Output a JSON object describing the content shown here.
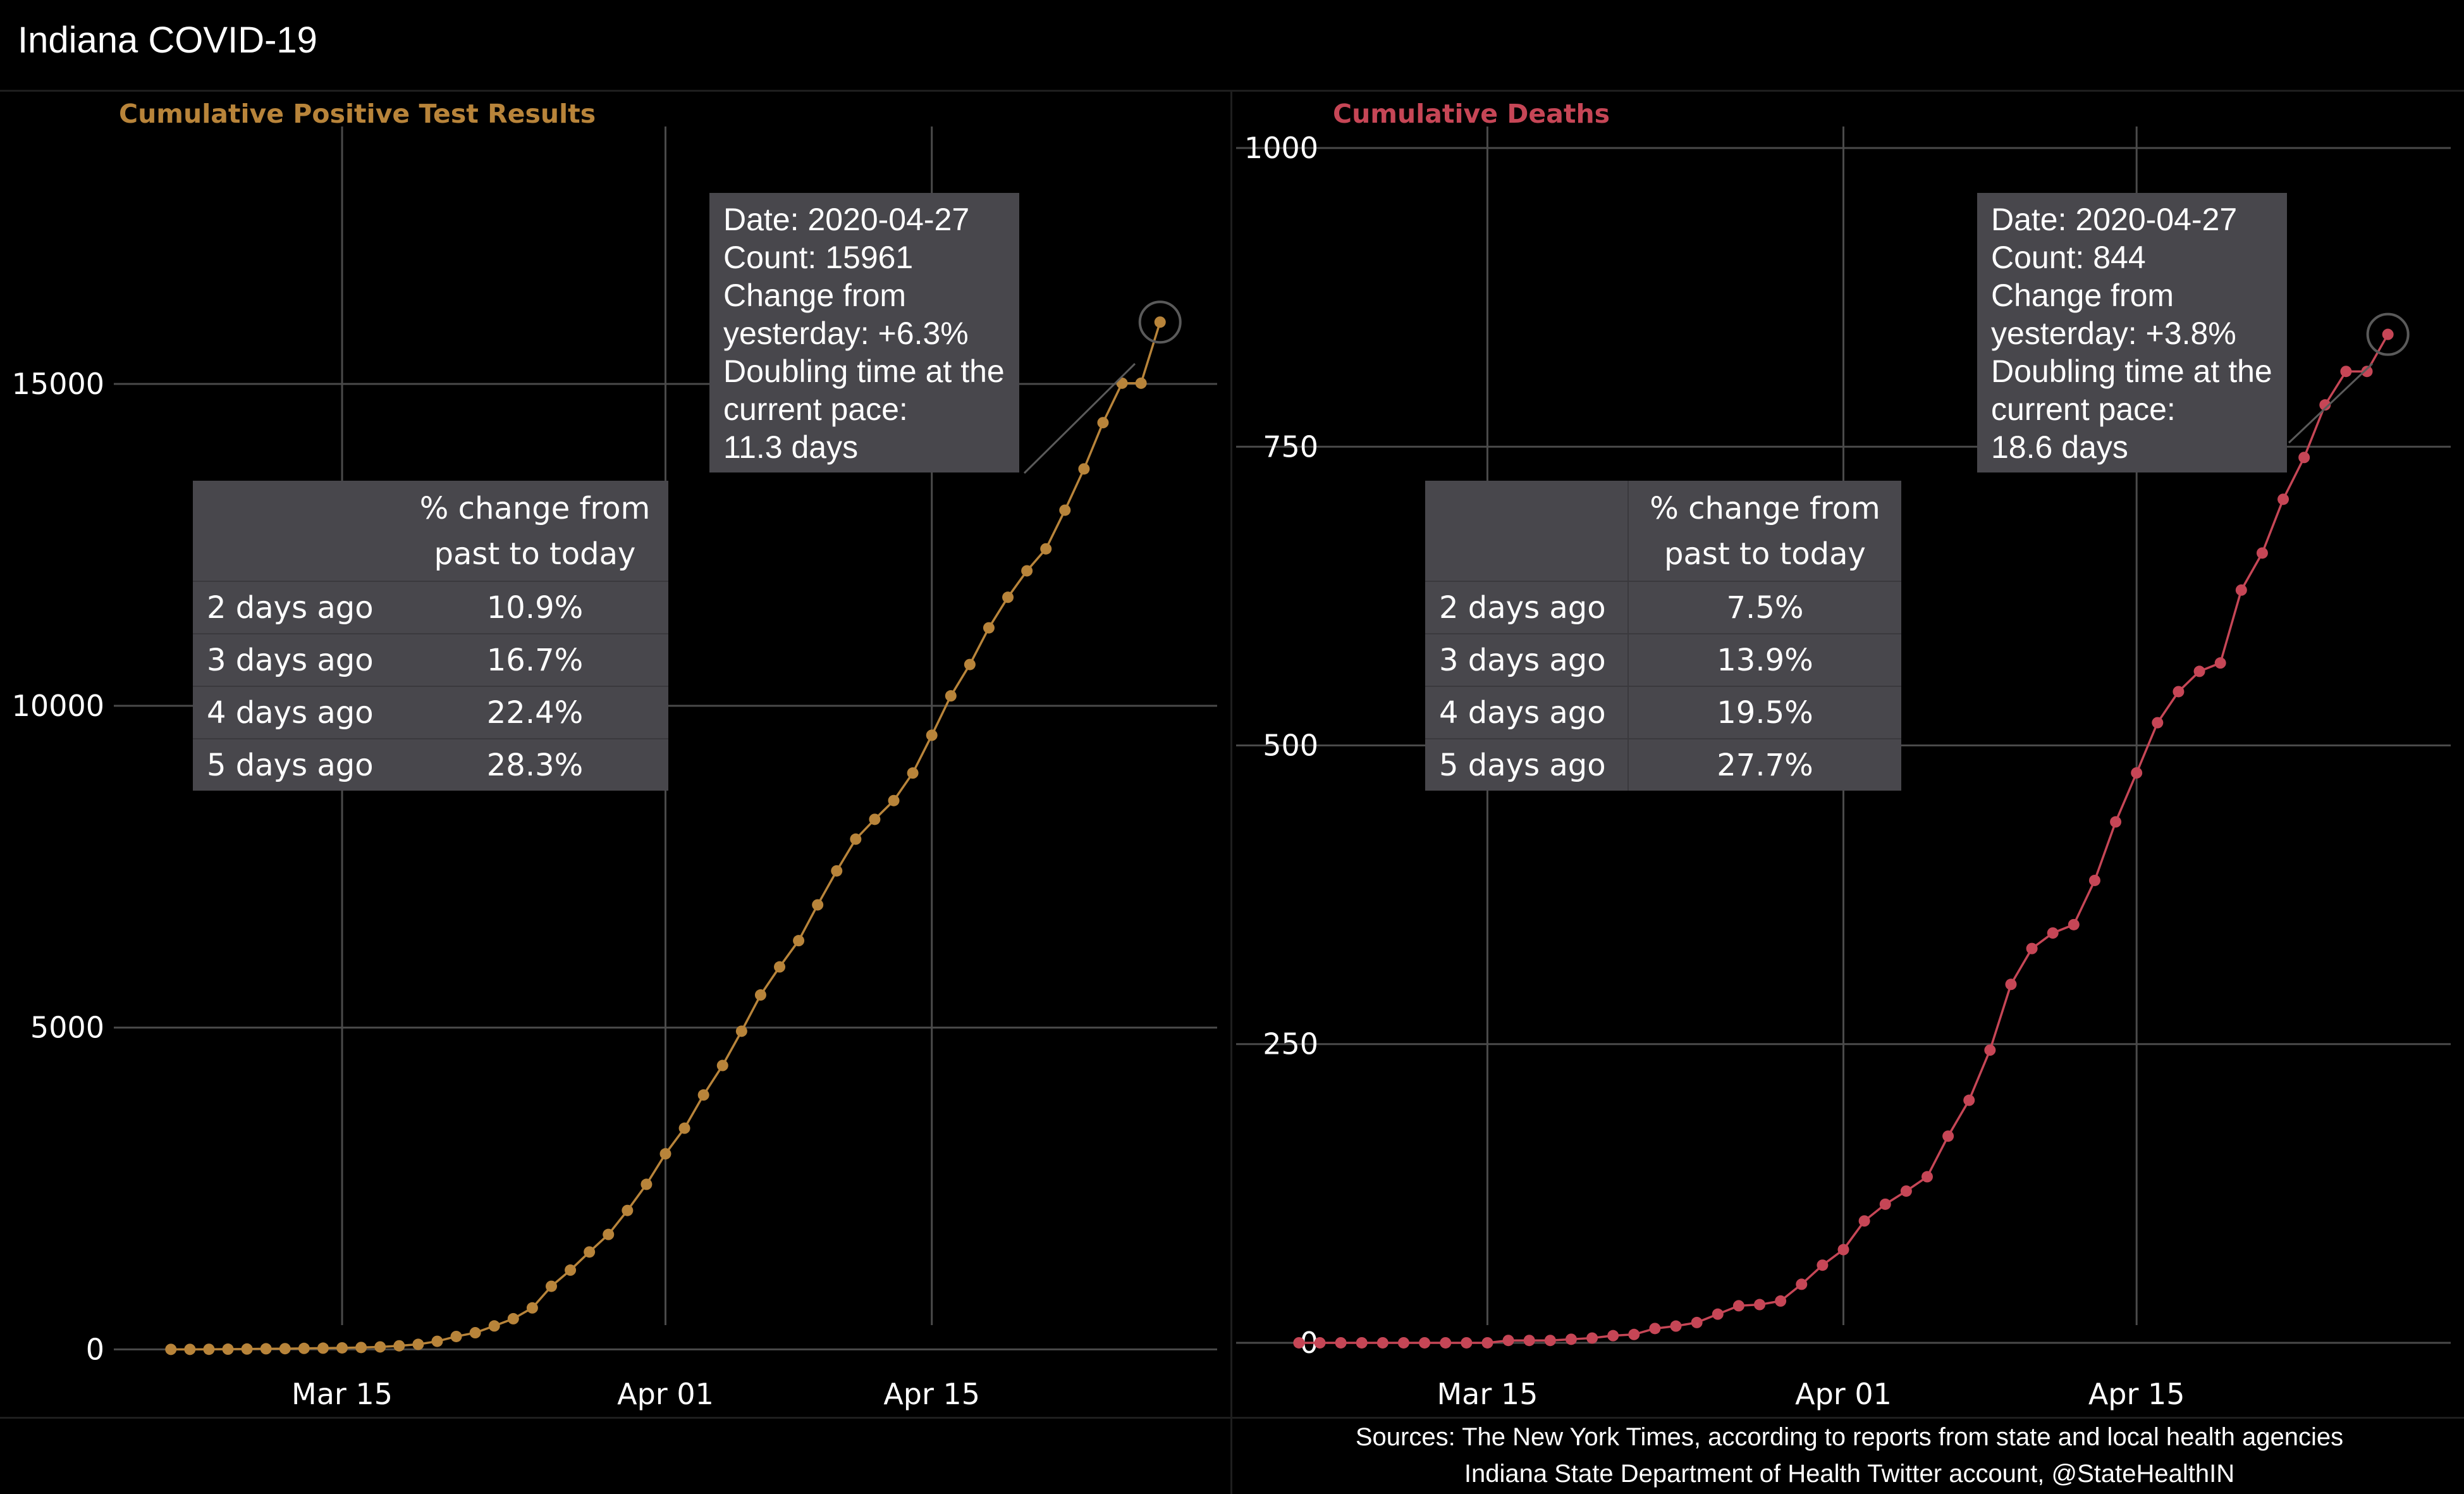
{
  "page": {
    "title": "Indiana COVID-19"
  },
  "colors": {
    "cases": "#b8843a",
    "deaths": "#c64656",
    "grid": "#4a4a4a",
    "tooltip_bg": "#48474c"
  },
  "sources": {
    "line1": "Sources: The New York Times, according to reports from state and local health agencies",
    "line2": "Indiana State Department of Health Twitter account, @StateHealthIN"
  },
  "chart_data": [
    {
      "type": "line",
      "title": "Cumulative Positive Test Results",
      "xlabel": "",
      "ylabel": "",
      "x_ticks": [
        "Mar 15",
        "Apr 01",
        "Apr 15"
      ],
      "y_ticks": [
        "0",
        "5000",
        "10000",
        "15000"
      ],
      "ylim": [
        -900,
        19000
      ],
      "xlim": [
        "2020-03-03",
        "2020-04-30"
      ],
      "grid": true,
      "series": [
        {
          "x": [
            "2020-03-06",
            "2020-03-07",
            "2020-03-08",
            "2020-03-09",
            "2020-03-10",
            "2020-03-11",
            "2020-03-12",
            "2020-03-13",
            "2020-03-14",
            "2020-03-15",
            "2020-03-16",
            "2020-03-17",
            "2020-03-18",
            "2020-03-19",
            "2020-03-20",
            "2020-03-21",
            "2020-03-22",
            "2020-03-23",
            "2020-03-24",
            "2020-03-25",
            "2020-03-26",
            "2020-03-27",
            "2020-03-28",
            "2020-03-29",
            "2020-03-30",
            "2020-03-31",
            "2020-04-01",
            "2020-04-02",
            "2020-04-03",
            "2020-04-04",
            "2020-04-05",
            "2020-04-06",
            "2020-04-07",
            "2020-04-08",
            "2020-04-09",
            "2020-04-10",
            "2020-04-11",
            "2020-04-12",
            "2020-04-13",
            "2020-04-14",
            "2020-04-15",
            "2020-04-16",
            "2020-04-17",
            "2020-04-18",
            "2020-04-19",
            "2020-04-20",
            "2020-04-21",
            "2020-04-22",
            "2020-04-23",
            "2020-04-24",
            "2020-04-25",
            "2020-04-26",
            "2020-04-27"
          ],
          "y": [
            1,
            1,
            2,
            4,
            6,
            10,
            12,
            16,
            20,
            24,
            30,
            39,
            56,
            79,
            126,
            201,
            259,
            365,
            477,
            645,
            981,
            1232,
            1514,
            1786,
            2159,
            2565,
            3039,
            3437,
            3953,
            4411,
            4944,
            5507,
            5943,
            6351,
            6907,
            7435,
            7928,
            8236,
            8527,
            8955,
            9542,
            10154,
            10641,
            11211,
            11686,
            12097,
            12438,
            13039,
            13680,
            14399,
            15012,
            15012,
            15961
          ]
        }
      ],
      "tooltip": [
        "Date: 2020-04-27",
        "Count: 15961",
        "Change from",
        "yesterday: +6.3%",
        "Doubling time at the",
        "current pace:",
        "11.3 days"
      ],
      "table": {
        "header": [
          "",
          "% change from past to today"
        ],
        "header_lines": [
          "% change from",
          "past to today"
        ],
        "rows": [
          [
            "2 days ago",
            "10.9%"
          ],
          [
            "3 days ago",
            "16.7%"
          ],
          [
            "4 days ago",
            "22.4%"
          ],
          [
            "5 days ago",
            "28.3%"
          ]
        ]
      }
    },
    {
      "type": "line",
      "title": "Cumulative Deaths",
      "xlabel": "",
      "ylabel": "",
      "x_ticks": [
        "Mar 15",
        "Apr 01",
        "Apr 15"
      ],
      "y_ticks": [
        "0",
        "250",
        "500",
        "750",
        "1000"
      ],
      "ylim": [
        -54,
        1018
      ],
      "xlim": [
        "2020-03-03",
        "2020-04-30"
      ],
      "grid": true,
      "series": [
        {
          "x": [
            "2020-03-06",
            "2020-03-07",
            "2020-03-08",
            "2020-03-09",
            "2020-03-10",
            "2020-03-11",
            "2020-03-12",
            "2020-03-13",
            "2020-03-14",
            "2020-03-15",
            "2020-03-16",
            "2020-03-17",
            "2020-03-18",
            "2020-03-19",
            "2020-03-20",
            "2020-03-21",
            "2020-03-22",
            "2020-03-23",
            "2020-03-24",
            "2020-03-25",
            "2020-03-26",
            "2020-03-27",
            "2020-03-28",
            "2020-03-29",
            "2020-03-30",
            "2020-03-31",
            "2020-04-01",
            "2020-04-02",
            "2020-04-03",
            "2020-04-04",
            "2020-04-05",
            "2020-04-06",
            "2020-04-07",
            "2020-04-08",
            "2020-04-09",
            "2020-04-10",
            "2020-04-11",
            "2020-04-12",
            "2020-04-13",
            "2020-04-14",
            "2020-04-15",
            "2020-04-16",
            "2020-04-17",
            "2020-04-18",
            "2020-04-19",
            "2020-04-20",
            "2020-04-21",
            "2020-04-22",
            "2020-04-23",
            "2020-04-24",
            "2020-04-25",
            "2020-04-26",
            "2020-04-27"
          ],
          "y": [
            0,
            0,
            0,
            0,
            0,
            0,
            0,
            0,
            0,
            0,
            2,
            2,
            2,
            3,
            4,
            6,
            7,
            12,
            14,
            17,
            24,
            31,
            32,
            35,
            49,
            65,
            78,
            102,
            116,
            127,
            139,
            173,
            203,
            245,
            300,
            330,
            343,
            350,
            387,
            436,
            477,
            519,
            545,
            562,
            569,
            630,
            661,
            706,
            741,
            785,
            813,
            813,
            844
          ]
        }
      ],
      "tooltip": [
        "Date: 2020-04-27",
        "Count: 844",
        "Change from",
        "yesterday: +3.8%",
        "Doubling time at the",
        "current pace:",
        "18.6 days"
      ],
      "table": {
        "header": [
          "",
          "% change from past to today"
        ],
        "header_lines": [
          "% change from",
          "past to today"
        ],
        "rows": [
          [
            "2 days ago",
            "7.5%"
          ],
          [
            "3 days ago",
            "13.9%"
          ],
          [
            "4 days ago",
            "19.5%"
          ],
          [
            "5 days ago",
            "27.7%"
          ]
        ]
      }
    }
  ]
}
